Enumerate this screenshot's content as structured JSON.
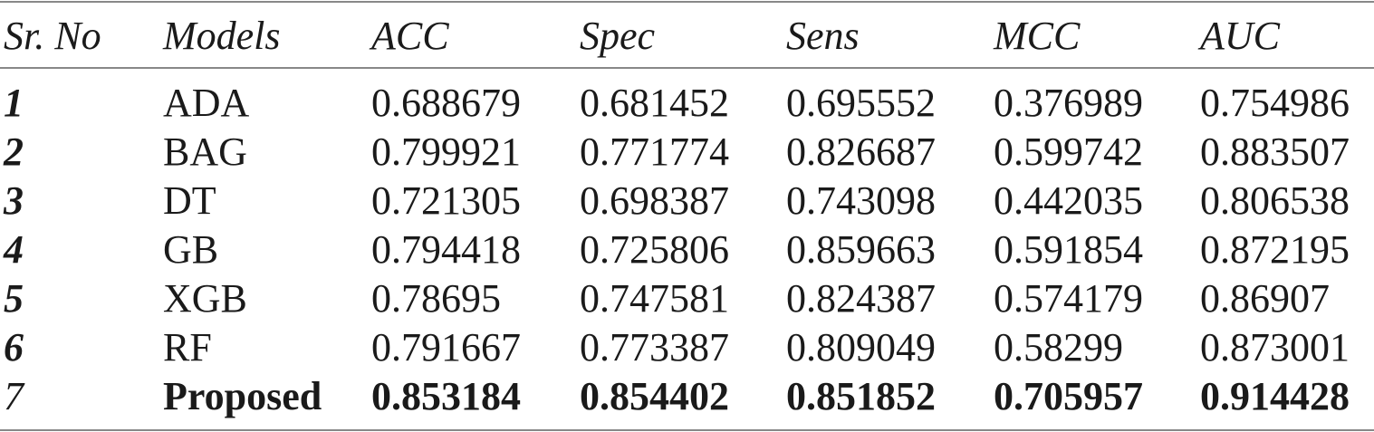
{
  "table": {
    "header": [
      "Sr. No",
      "Models",
      "ACC",
      "Spec",
      "Sens",
      "MCC",
      "AUC"
    ],
    "rows": [
      [
        "1",
        "ADA",
        "0.688679",
        "0.681452",
        "0.695552",
        "0.376989",
        "0.754986"
      ],
      [
        "2",
        "BAG",
        "0.799921",
        "0.771774",
        "0.826687",
        "0.599742",
        "0.883507"
      ],
      [
        "3",
        "DT",
        "0.721305",
        "0.698387",
        "0.743098",
        "0.442035",
        "0.806538"
      ],
      [
        "4",
        "GB",
        "0.794418",
        "0.725806",
        "0.859663",
        "0.591854",
        "0.872195"
      ],
      [
        "5",
        "XGB",
        "0.78695",
        "0.747581",
        "0.824387",
        "0.574179",
        "0.86907"
      ],
      [
        "6",
        "RF",
        "0.791667",
        "0.773387",
        "0.809049",
        "0.58299",
        "0.873001"
      ],
      [
        "7",
        "Proposed",
        "0.853184",
        "0.854402",
        "0.851852",
        "0.705957",
        "0.914428"
      ]
    ]
  }
}
